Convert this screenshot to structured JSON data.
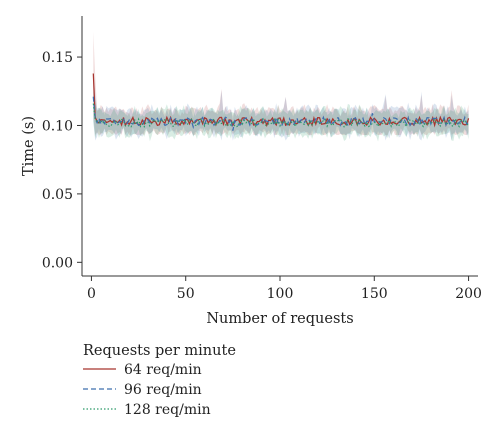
{
  "chart_data": {
    "type": "line",
    "title": "",
    "xlabel": "Number of requests",
    "ylabel": "Time (s)",
    "xlim": [
      -5,
      205
    ],
    "ylim": [
      -0.01,
      0.18
    ],
    "x_ticks": [
      0,
      50,
      100,
      150,
      200
    ],
    "x_tick_labels": [
      "0",
      "50",
      "100",
      "150",
      "200"
    ],
    "y_ticks": [
      0.0,
      0.05,
      0.1,
      0.15
    ],
    "y_tick_labels": [
      "0.00",
      "0.05",
      "0.10",
      "0.15"
    ],
    "grid": false,
    "legend": {
      "title": "Requests per minute",
      "placement": "below"
    },
    "series": [
      {
        "name": "64 req/min",
        "color": "#a8342f",
        "line_style": "solid",
        "x_range": [
          1,
          200
        ],
        "approx_mean": 0.103,
        "initial_values": [
          0.138,
          0.106,
          0.103
        ],
        "band_min": 0.093,
        "band_max": 0.18
      },
      {
        "name": "96 req/min",
        "color": "#3f6fae",
        "line_style": "dashed",
        "x_range": [
          1,
          200
        ],
        "approx_mean": 0.103,
        "initial_values": [
          0.121,
          0.105,
          0.102
        ],
        "band_min": 0.089,
        "band_max": 0.14
      },
      {
        "name": "128 req/min",
        "color": "#2d9a6a",
        "line_style": "dotted",
        "x_range": [
          1,
          200
        ],
        "approx_mean": 0.102,
        "initial_values": [
          0.116,
          0.104,
          0.103
        ],
        "band_min": 0.087,
        "band_max": 0.125
      }
    ]
  }
}
